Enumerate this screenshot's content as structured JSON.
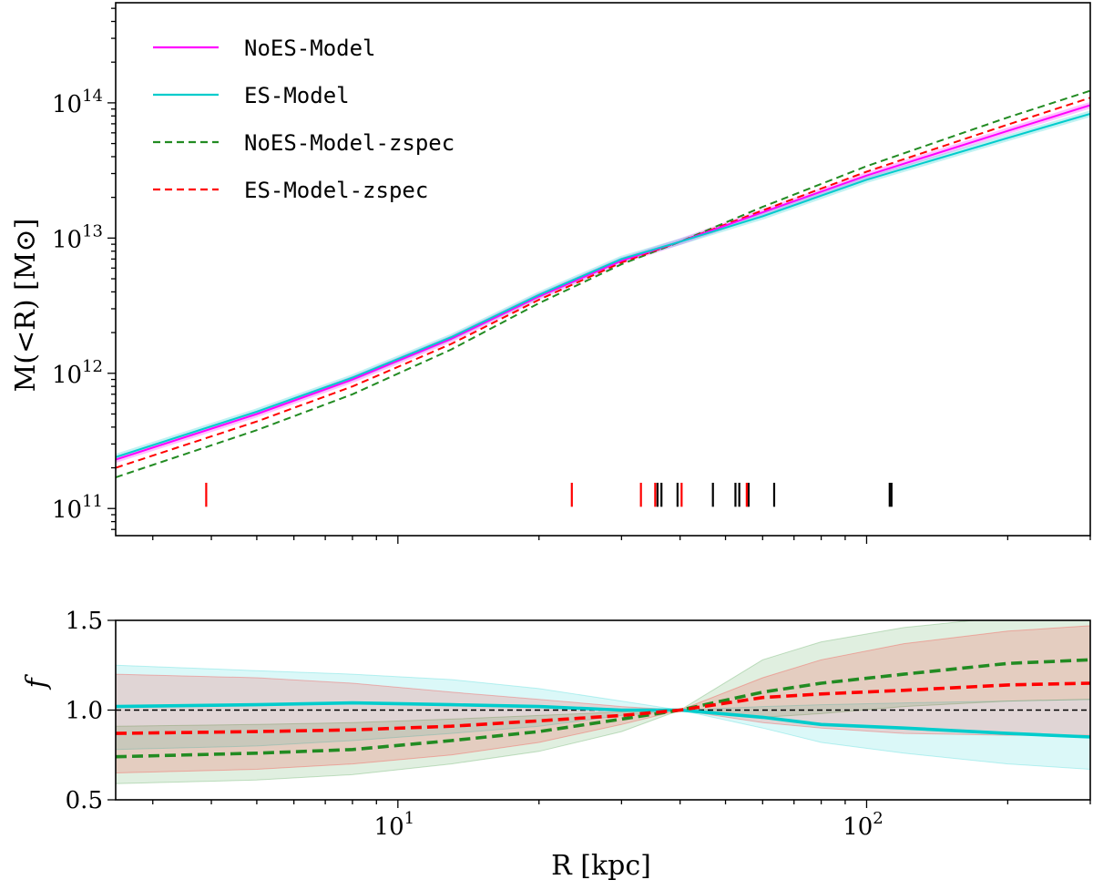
{
  "chart_data": [
    {
      "type": "line",
      "panel": "top",
      "ylabel": "M(<R) [M⊙]",
      "xscale": "log",
      "yscale": "log",
      "xlim": [
        2.5,
        300
      ],
      "ylim": [
        63000000000.0,
        550000000000000.0
      ],
      "yticks": [
        {
          "value": 100000000000.0,
          "label": "10",
          "sup": "11"
        },
        {
          "value": 1000000000000.0,
          "label": "10",
          "sup": "12"
        },
        {
          "value": 10000000000000.0,
          "label": "10",
          "sup": "13"
        },
        {
          "value": 100000000000000.0,
          "label": "10",
          "sup": "14"
        }
      ],
      "legend": {
        "placement": "top-left",
        "entries": [
          {
            "name": "NoES-Model",
            "color": "#ff00ff",
            "dash": "solid"
          },
          {
            "name": "ES-Model",
            "color": "#00cccc",
            "dash": "solid"
          },
          {
            "name": "NoES-Model-zspec",
            "color": "#228b22",
            "dash": "dashed"
          },
          {
            "name": "ES-Model-zspec",
            "color": "#ff0000",
            "dash": "dashed"
          }
        ]
      },
      "series": [
        {
          "name": "NoES-Model",
          "color": "#ff00ff",
          "dash": "solid",
          "x": [
            2.5,
            5,
            8,
            13,
            20,
            30,
            40,
            60,
            100,
            200,
            300
          ],
          "y": [
            230000000000.0,
            500000000000.0,
            900000000000.0,
            1800000000000.0,
            3700000000000.0,
            6800000000000.0,
            9400000000000.0,
            15500000000000.0,
            29000000000000.0,
            62000000000000.0,
            96000000000000.0
          ]
        },
        {
          "name": "ES-Model",
          "color": "#00cccc",
          "dash": "solid",
          "x": [
            2.5,
            5,
            8,
            13,
            20,
            30,
            40,
            60,
            100,
            200,
            300
          ],
          "y": [
            240000000000.0,
            520000000000.0,
            930000000000.0,
            1850000000000.0,
            3800000000000.0,
            7000000000000.0,
            9400000000000.0,
            14500000000000.0,
            27000000000000.0,
            55000000000000.0,
            83000000000000.0
          ]
        },
        {
          "name": "NoES-Model-zspec",
          "color": "#228b22",
          "dash": "dashed",
          "x": [
            2.5,
            5,
            8,
            13,
            20,
            30,
            40,
            60,
            100,
            200,
            300
          ],
          "y": [
            170000000000.0,
            380000000000.0,
            700000000000.0,
            1500000000000.0,
            3300000000000.0,
            6400000000000.0,
            9400000000000.0,
            17000000000000.0,
            34000000000000.0,
            78000000000000.0,
            123000000000000.0
          ]
        },
        {
          "name": "ES-Model-zspec",
          "color": "#ff0000",
          "dash": "dashed",
          "x": [
            2.5,
            5,
            8,
            13,
            20,
            30,
            40,
            60,
            100,
            200,
            300
          ],
          "y": [
            200000000000.0,
            440000000000.0,
            800000000000.0,
            1650000000000.0,
            3500000000000.0,
            6600000000000.0,
            9400000000000.0,
            16000000000000.0,
            31000000000000.0,
            69000000000000.0,
            109000000000000.0
          ]
        }
      ],
      "markers": {
        "red": {
          "color": "#ff0000",
          "x": [
            3.9,
            23.5,
            33.0,
            35.4,
            40.3,
            55.5
          ]
        },
        "black": {
          "color": "#000000",
          "x": [
            35.8,
            36.5,
            39.5,
            47.0,
            52.5,
            53.5,
            56.0,
            63.5,
            112,
            113
          ]
        }
      }
    },
    {
      "type": "line",
      "panel": "bottom",
      "xlabel": "R [kpc]",
      "ylabel": "f",
      "xscale": "log",
      "xlim": [
        2.5,
        300
      ],
      "ylim": [
        0.5,
        1.5
      ],
      "xticks": [
        {
          "value": 10,
          "label": "10",
          "sup": "1"
        },
        {
          "value": 100,
          "label": "10",
          "sup": "2"
        }
      ],
      "yticks": [
        {
          "value": 0.5,
          "label": "0.5"
        },
        {
          "value": 1.0,
          "label": "1.0"
        },
        {
          "value": 1.5,
          "label": "1.5"
        }
      ],
      "reference_line": {
        "y": 1.0,
        "color": "#000000",
        "dash": "dashed"
      },
      "x": [
        2.5,
        5,
        8,
        13,
        20,
        30,
        40,
        60,
        80,
        120,
        200,
        300
      ],
      "series": [
        {
          "name": "ES-Model",
          "color": "#00cccc",
          "dash": "solid",
          "y": [
            1.02,
            1.03,
            1.04,
            1.03,
            1.02,
            1.0,
            1.0,
            0.96,
            0.92,
            0.9,
            0.87,
            0.85
          ],
          "band_low": [
            0.78,
            0.8,
            0.83,
            0.87,
            0.91,
            0.97,
            1.0,
            0.9,
            0.82,
            0.76,
            0.7,
            0.67
          ],
          "band_high": [
            1.25,
            1.22,
            1.2,
            1.17,
            1.12,
            1.05,
            1.0,
            1.02,
            1.03,
            1.04,
            1.05,
            1.06
          ]
        },
        {
          "name": "NoES-Model-zspec",
          "color": "#228b22",
          "dash": "dashed",
          "y": [
            0.74,
            0.76,
            0.78,
            0.83,
            0.88,
            0.95,
            1.0,
            1.1,
            1.15,
            1.2,
            1.26,
            1.28
          ],
          "band_low": [
            0.59,
            0.61,
            0.64,
            0.7,
            0.77,
            0.88,
            1.0,
            0.96,
            0.98,
            1.02,
            1.05,
            1.06
          ],
          "band_high": [
            0.91,
            0.92,
            0.93,
            0.95,
            0.97,
            0.99,
            1.0,
            1.28,
            1.38,
            1.46,
            1.52,
            1.52
          ]
        },
        {
          "name": "ES-Model-zspec",
          "color": "#ff0000",
          "dash": "dashed",
          "y": [
            0.87,
            0.88,
            0.89,
            0.91,
            0.94,
            0.97,
            1.0,
            1.07,
            1.09,
            1.11,
            1.14,
            1.15
          ],
          "band_low": [
            0.65,
            0.67,
            0.7,
            0.75,
            0.82,
            0.92,
            1.0,
            0.93,
            0.9,
            0.87,
            0.86,
            0.86
          ],
          "band_high": [
            1.2,
            1.18,
            1.15,
            1.1,
            1.06,
            1.02,
            1.0,
            1.18,
            1.28,
            1.37,
            1.44,
            1.47
          ]
        }
      ]
    }
  ]
}
